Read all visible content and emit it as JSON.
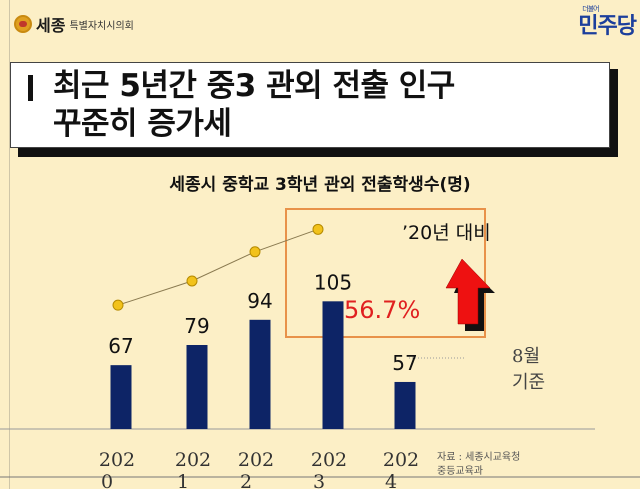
{
  "header": {
    "logo_main": "세종",
    "logo_sub": "특별자치시의회",
    "party_small": "더불어",
    "party": "민주당"
  },
  "slide_title": "최근 5년간 중3 관외 전출 인구\n꾸준히 증가세",
  "chart_data": {
    "type": "bar",
    "title": "세종시 중학교 3학년 관외 전출학생수(명)",
    "categories": [
      "2020",
      "2021",
      "2022",
      "2023",
      "2024"
    ],
    "values": [
      67,
      79,
      94,
      105,
      57
    ],
    "data_labels": [
      "67",
      "79",
      "94",
      "105",
      "57"
    ],
    "trend_line": {
      "points": 4,
      "color": "#f2c21b"
    },
    "bar_color": "#0d2466",
    "grid": false,
    "annotations": {
      "comparison": "’20년 대비",
      "increase": "56.7%",
      "note_2024": "8월\n기준",
      "source": "자료 : 세종시교육청\n중등교육과"
    },
    "colors": {
      "highlight_box": "#e8924a",
      "increase": "#e02020",
      "arrow": "#ee1111"
    }
  }
}
